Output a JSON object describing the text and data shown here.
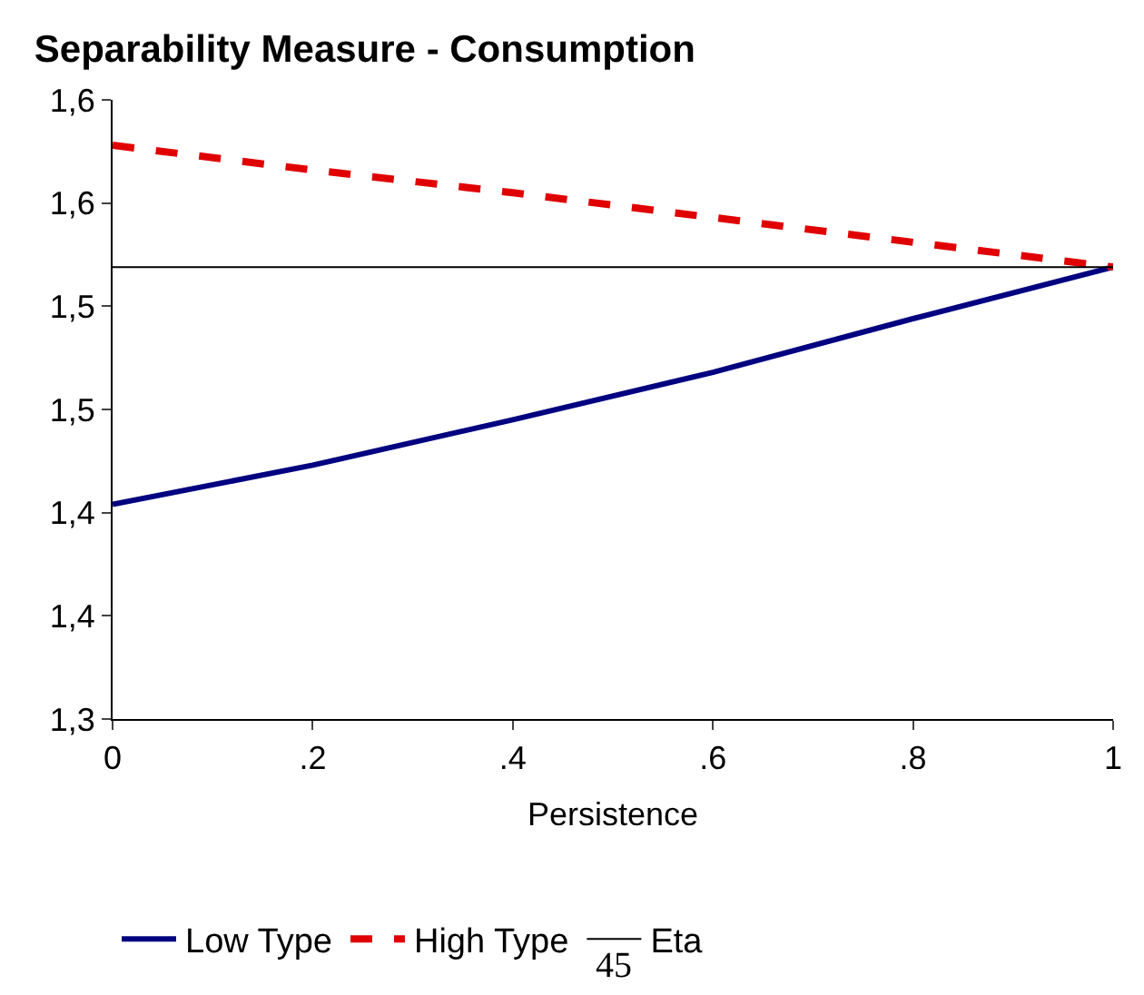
{
  "chart_data": {
    "type": "line",
    "title": "Separability Measure - Consumption",
    "xlabel": "Persistence",
    "x": [
      0,
      0.2,
      0.4,
      0.6,
      0.8,
      1
    ],
    "series": [
      {
        "name": "Low Type",
        "color": "#000080",
        "values": [
          1.404,
          1.423,
          1.445,
          1.468,
          1.494,
          1.519
        ],
        "line_style": "solid"
      },
      {
        "name": "High Type",
        "color": "#e00000",
        "values": [
          1.578,
          1.566,
          1.555,
          1.543,
          1.531,
          1.519
        ],
        "line_style": "dashed"
      },
      {
        "name": "Eta",
        "color": "#000000",
        "values": [
          1.519,
          1.519,
          1.519,
          1.519,
          1.519,
          1.519
        ],
        "line_style": "solid"
      }
    ],
    "xlim": [
      0,
      1
    ],
    "xticks": [
      0,
      {
        "value": 0.2,
        "label": ".2"
      },
      {
        "value": 0.4,
        "label": ".4"
      },
      {
        "value": 0.6,
        "label": ".6"
      },
      {
        "value": 0.8,
        "label": ".8"
      },
      1
    ],
    "ylim": [
      1.3,
      1.6
    ],
    "yticks": [
      {
        "value": 1.3,
        "label": "1,3"
      },
      {
        "value": 1.35,
        "label": "1,4"
      },
      {
        "value": 1.4,
        "label": "1,4"
      },
      {
        "value": 1.45,
        "label": "1,5"
      },
      {
        "value": 1.5,
        "label": "1,5"
      },
      {
        "value": 1.55,
        "label": "1,6"
      },
      {
        "value": 1.6,
        "label": "1,6"
      }
    ],
    "legend": "bottom",
    "marker": "none",
    "annotations": [
      "45"
    ]
  }
}
